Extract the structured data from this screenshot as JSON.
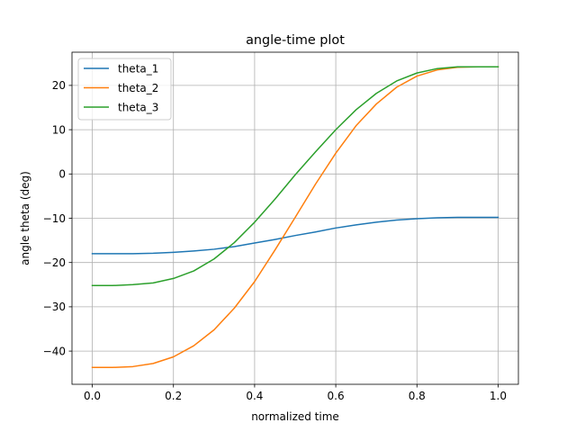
{
  "chart_data": {
    "type": "line",
    "title": "angle-time plot",
    "xlabel": "normalized time",
    "ylabel": "angle theta (deg)",
    "xlim": [
      -0.05,
      1.05
    ],
    "ylim": [
      -47.5,
      27.5
    ],
    "xticks": [
      0.0,
      0.2,
      0.4,
      0.6,
      0.8,
      1.0
    ],
    "xtick_labels": [
      "0.0",
      "0.2",
      "0.4",
      "0.6",
      "0.8",
      "1.0"
    ],
    "yticks": [
      -40,
      -30,
      -20,
      -10,
      0,
      10,
      20
    ],
    "ytick_labels": [
      "−40",
      "−30",
      "−20",
      "−10",
      "0",
      "10",
      "20"
    ],
    "grid": true,
    "legend_position": "top-left",
    "x": [
      0.0,
      0.05,
      0.1,
      0.15,
      0.2,
      0.25,
      0.3,
      0.35,
      0.4,
      0.45,
      0.5,
      0.55,
      0.6,
      0.65,
      0.7,
      0.75,
      0.8,
      0.85,
      0.9,
      0.95,
      1.0
    ],
    "series": [
      {
        "name": "theta_1",
        "color": "#1f77b4",
        "values": [
          -18.0,
          -18.0,
          -18.0,
          -17.9,
          -17.7,
          -17.4,
          -17.0,
          -16.4,
          -15.6,
          -14.8,
          -13.9,
          -13.1,
          -12.2,
          -11.5,
          -10.9,
          -10.4,
          -10.1,
          -9.9,
          -9.8,
          -9.8,
          -9.8
        ]
      },
      {
        "name": "theta_2",
        "color": "#ff7f0e",
        "values": [
          -43.7,
          -43.7,
          -43.5,
          -42.8,
          -41.3,
          -38.8,
          -35.2,
          -30.3,
          -24.3,
          -17.2,
          -9.8,
          -2.3,
          4.7,
          10.9,
          15.8,
          19.6,
          22.1,
          23.5,
          24.1,
          24.2,
          24.2
        ]
      },
      {
        "name": "theta_3",
        "color": "#2ca02c",
        "values": [
          -25.2,
          -25.2,
          -25.0,
          -24.6,
          -23.6,
          -21.9,
          -19.2,
          -15.5,
          -10.9,
          -5.7,
          -0.2,
          5.0,
          10.0,
          14.5,
          18.2,
          21.0,
          22.8,
          23.8,
          24.2,
          24.2,
          24.2
        ]
      }
    ]
  }
}
